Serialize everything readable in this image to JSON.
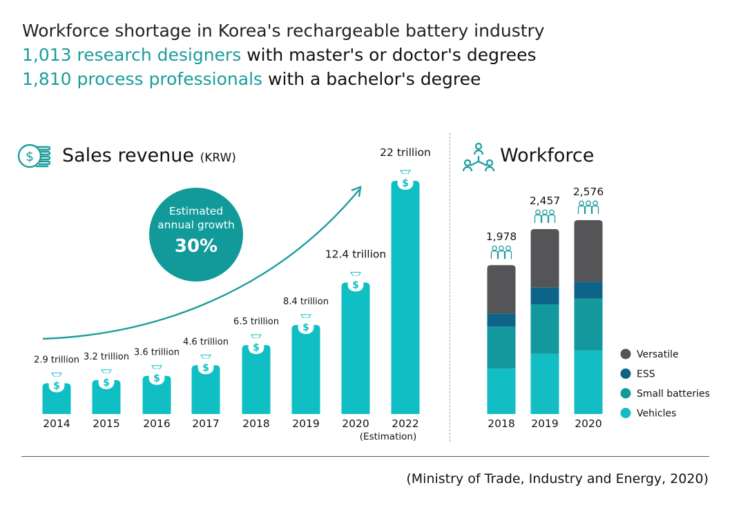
{
  "headline": {
    "line1": "Workforce shortage in Korea's rechargeable battery industry",
    "line2_highlight": "1,013 research designers",
    "line2_rest": " with master's or doctor's degrees",
    "line3_highlight": "1,810 process professionals",
    "line3_rest": " with a bachelor's degree"
  },
  "sales_section": {
    "title": "Sales revenue",
    "unit": "(KRW)"
  },
  "growth_badge": {
    "label_line1": "Estimated",
    "label_line2": "annual growth",
    "value": "30%"
  },
  "workforce_section": {
    "title": "Workforce"
  },
  "source": "(Ministry of Trade, Industry and Energy, 2020)",
  "colors": {
    "teal_bar": "#0fbfc4",
    "teal_text": "#1a9c9c",
    "badge": "#129a9a",
    "versatile": "#555557",
    "ess": "#0e6488",
    "small_batteries": "#13999d",
    "vehicles": "#12bec3"
  },
  "chart_data": [
    {
      "type": "bar",
      "title": "Sales revenue",
      "ylabel": "(KRW)",
      "categories": [
        "2014",
        "2015",
        "2016",
        "2017",
        "2018",
        "2019",
        "2020",
        "2022"
      ],
      "category_notes": [
        "",
        "",
        "",
        "",
        "",
        "",
        "",
        "(Estimation)"
      ],
      "values": [
        2.9,
        3.2,
        3.6,
        4.6,
        6.5,
        8.4,
        12.4,
        22
      ],
      "value_labels": [
        "2.9 trillion",
        "3.2 trillion",
        "3.6 trillion",
        "4.6 trillion",
        "6.5 trillion",
        "8.4 trillion",
        "12.4 trillion",
        "22 trillion"
      ],
      "ylim": [
        0,
        22
      ],
      "grid": false
    },
    {
      "type": "bar",
      "stacked": true,
      "title": "Workforce",
      "categories": [
        "2018",
        "2019",
        "2020"
      ],
      "totals": [
        1978,
        2457,
        2576
      ],
      "total_labels": [
        "1,978",
        "2,457",
        "2,576"
      ],
      "series": [
        {
          "name": "Vehicles",
          "values": [
            604,
            799,
            844
          ]
        },
        {
          "name": "Small batteries",
          "values": [
            557,
            659,
            689
          ]
        },
        {
          "name": "ESS",
          "values": [
            175,
            222,
            222
          ]
        },
        {
          "name": "Versatile",
          "values": [
            642,
            777,
            821
          ]
        }
      ],
      "legend_order": [
        "Versatile",
        "ESS",
        "Small batteries",
        "Vehicles"
      ],
      "legend_position": "right",
      "grid": false
    }
  ]
}
